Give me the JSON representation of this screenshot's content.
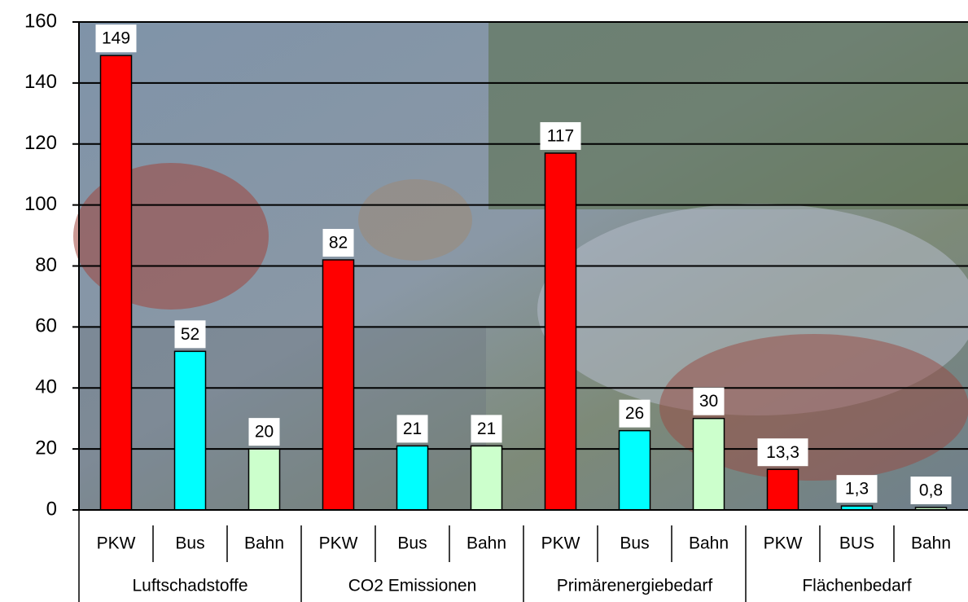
{
  "chart_data": {
    "type": "bar",
    "categories": [
      "PKW",
      "Bus",
      "Bahn",
      "PKW",
      "Bus",
      "Bahn",
      "PKW",
      "Bus",
      "Bahn",
      "PKW",
      "BUS",
      "Bahn"
    ],
    "groups": [
      "Luftschadstoffe",
      "CO2 Emissionen",
      "Primärenergiebedarf",
      "Flächenbedarf"
    ],
    "values": [
      149,
      52,
      20,
      82,
      21,
      21,
      117,
      26,
      30,
      13.3,
      1.3,
      0.8
    ],
    "value_labels": [
      "149",
      "52",
      "20",
      "82",
      "21",
      "21",
      "117",
      "26",
      "30",
      "13,3",
      "1,3",
      "0,8"
    ],
    "colors": [
      "#ff0000",
      "#00ffff",
      "#ccffcc",
      "#ff0000",
      "#00ffff",
      "#ccffcc",
      "#ff0000",
      "#00ffff",
      "#ccffcc",
      "#ff0000",
      "#00ffff",
      "#ccffcc"
    ],
    "ylim": [
      0,
      160
    ],
    "yticks": [
      0,
      20,
      40,
      60,
      80,
      100,
      120,
      140,
      160
    ],
    "grid": true
  }
}
